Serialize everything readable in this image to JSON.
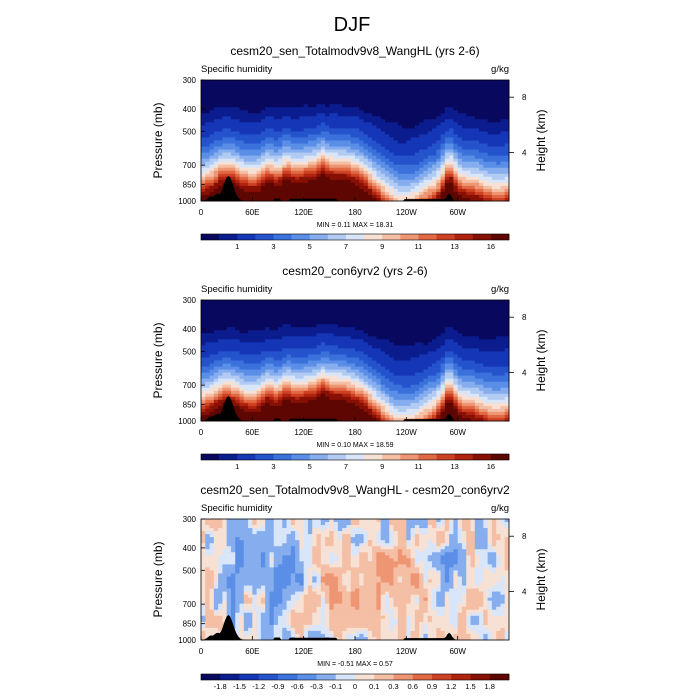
{
  "figure": {
    "title": "DJF"
  },
  "chart_data": [
    {
      "type": "heatmap",
      "title": "cesm20_sen_Totalmodv9v8_WangHL (yrs 2-6)",
      "left_label": "Specific humidity",
      "right_label": "g/kg",
      "ylabel": "Pressure (mb)",
      "ylabel_right": "Height (km)",
      "x_ticks": [
        "0",
        "60E",
        "120E",
        "180",
        "120W",
        "60W"
      ],
      "x_tick_lon": [
        0,
        60,
        120,
        180,
        240,
        300
      ],
      "y_ticks": [
        "300",
        "400",
        "500",
        "700",
        "850",
        "1000"
      ],
      "y_tick_p": [
        300,
        400,
        500,
        700,
        850,
        1000
      ],
      "height_ticks": [
        "8",
        "4"
      ],
      "height_tick_p": [
        356,
        617
      ],
      "xlim": [
        0,
        360
      ],
      "ylim": [
        1000,
        300
      ],
      "y_scale": "log",
      "min_text": "MIN =   0.11  MAX =  18.31",
      "min": 0.11,
      "max": 18.31,
      "colorbar": {
        "levels": [
          0.5,
          1,
          2,
          3,
          4,
          5,
          6,
          7,
          8,
          9,
          10,
          11,
          12,
          13,
          14,
          16
        ],
        "labels": [
          "1",
          "3",
          "5",
          "7",
          "9",
          "11",
          "13",
          "16"
        ],
        "colors": [
          "#08085e",
          "#0b1d8e",
          "#1536b6",
          "#2453cc",
          "#3a71db",
          "#5b8ee6",
          "#86aeee",
          "#b2cbf3",
          "#d9e5f8",
          "#f7e1d4",
          "#f4bfa4",
          "#ee9673",
          "#e16a45",
          "#cd4224",
          "#b0230f",
          "#871005",
          "#5e0602"
        ]
      },
      "field": "humidity"
    },
    {
      "type": "heatmap",
      "title": "cesm20_con6yrv2 (yrs 2-6)",
      "left_label": "Specific humidity",
      "right_label": "g/kg",
      "ylabel": "Pressure (mb)",
      "ylabel_right": "Height (km)",
      "x_ticks": [
        "0",
        "60E",
        "120E",
        "180",
        "120W",
        "60W"
      ],
      "x_tick_lon": [
        0,
        60,
        120,
        180,
        240,
        300
      ],
      "y_ticks": [
        "300",
        "400",
        "500",
        "700",
        "850",
        "1000"
      ],
      "y_tick_p": [
        300,
        400,
        500,
        700,
        850,
        1000
      ],
      "height_ticks": [
        "8",
        "4"
      ],
      "height_tick_p": [
        356,
        617
      ],
      "xlim": [
        0,
        360
      ],
      "ylim": [
        1000,
        300
      ],
      "y_scale": "log",
      "min_text": "MIN =   0.10  MAX =  18.59",
      "min": 0.1,
      "max": 18.59,
      "colorbar": {
        "levels": [
          0.5,
          1,
          2,
          3,
          4,
          5,
          6,
          7,
          8,
          9,
          10,
          11,
          12,
          13,
          14,
          16
        ],
        "labels": [
          "1",
          "3",
          "5",
          "7",
          "9",
          "11",
          "13",
          "16"
        ],
        "colors": [
          "#08085e",
          "#0b1d8e",
          "#1536b6",
          "#2453cc",
          "#3a71db",
          "#5b8ee6",
          "#86aeee",
          "#b2cbf3",
          "#d9e5f8",
          "#f7e1d4",
          "#f4bfa4",
          "#ee9673",
          "#e16a45",
          "#cd4224",
          "#b0230f",
          "#871005",
          "#5e0602"
        ]
      },
      "field": "humidity"
    },
    {
      "type": "heatmap",
      "title": "cesm20_sen_Totalmodv9v8_WangHL - cesm20_con6yrv2",
      "left_label": "Specific humidity",
      "right_label": "g/kg",
      "ylabel": "Pressure (mb)",
      "ylabel_right": "Height (km)",
      "x_ticks": [
        "0",
        "60E",
        "120E",
        "180",
        "120W",
        "60W"
      ],
      "x_tick_lon": [
        0,
        60,
        120,
        180,
        240,
        300
      ],
      "y_ticks": [
        "300",
        "400",
        "500",
        "700",
        "850",
        "1000"
      ],
      "y_tick_p": [
        300,
        400,
        500,
        700,
        850,
        1000
      ],
      "height_ticks": [
        "8",
        "4"
      ],
      "height_tick_p": [
        356,
        617
      ],
      "xlim": [
        0,
        360
      ],
      "ylim": [
        1000,
        300
      ],
      "y_scale": "log",
      "min_text": "MIN =  -0.51  MAX =   0.57",
      "min": -0.51,
      "max": 0.57,
      "colorbar": {
        "levels": [
          -1.8,
          -1.5,
          -1.2,
          -0.9,
          -0.6,
          -0.3,
          -0.1,
          0,
          0.1,
          0.3,
          0.6,
          0.9,
          1.2,
          1.5,
          1.8
        ],
        "labels": [
          "-1.8",
          "-1.5",
          "-1.2",
          "-0.9",
          "-0.6",
          "-0.3",
          "-0.1",
          "0",
          "0.1",
          "0.3",
          "0.6",
          "0.9",
          "1.2",
          "1.5",
          "1.8"
        ],
        "colors": [
          "#08085e",
          "#0b1d8e",
          "#1536b6",
          "#2453cc",
          "#3a71db",
          "#5b8ee6",
          "#86aeee",
          "#d9e5f8",
          "#f7e1d4",
          "#f4bfa4",
          "#ee9673",
          "#e16a45",
          "#cd4224",
          "#b0230f",
          "#871005",
          "#5e0602"
        ]
      },
      "field": "difference"
    }
  ]
}
